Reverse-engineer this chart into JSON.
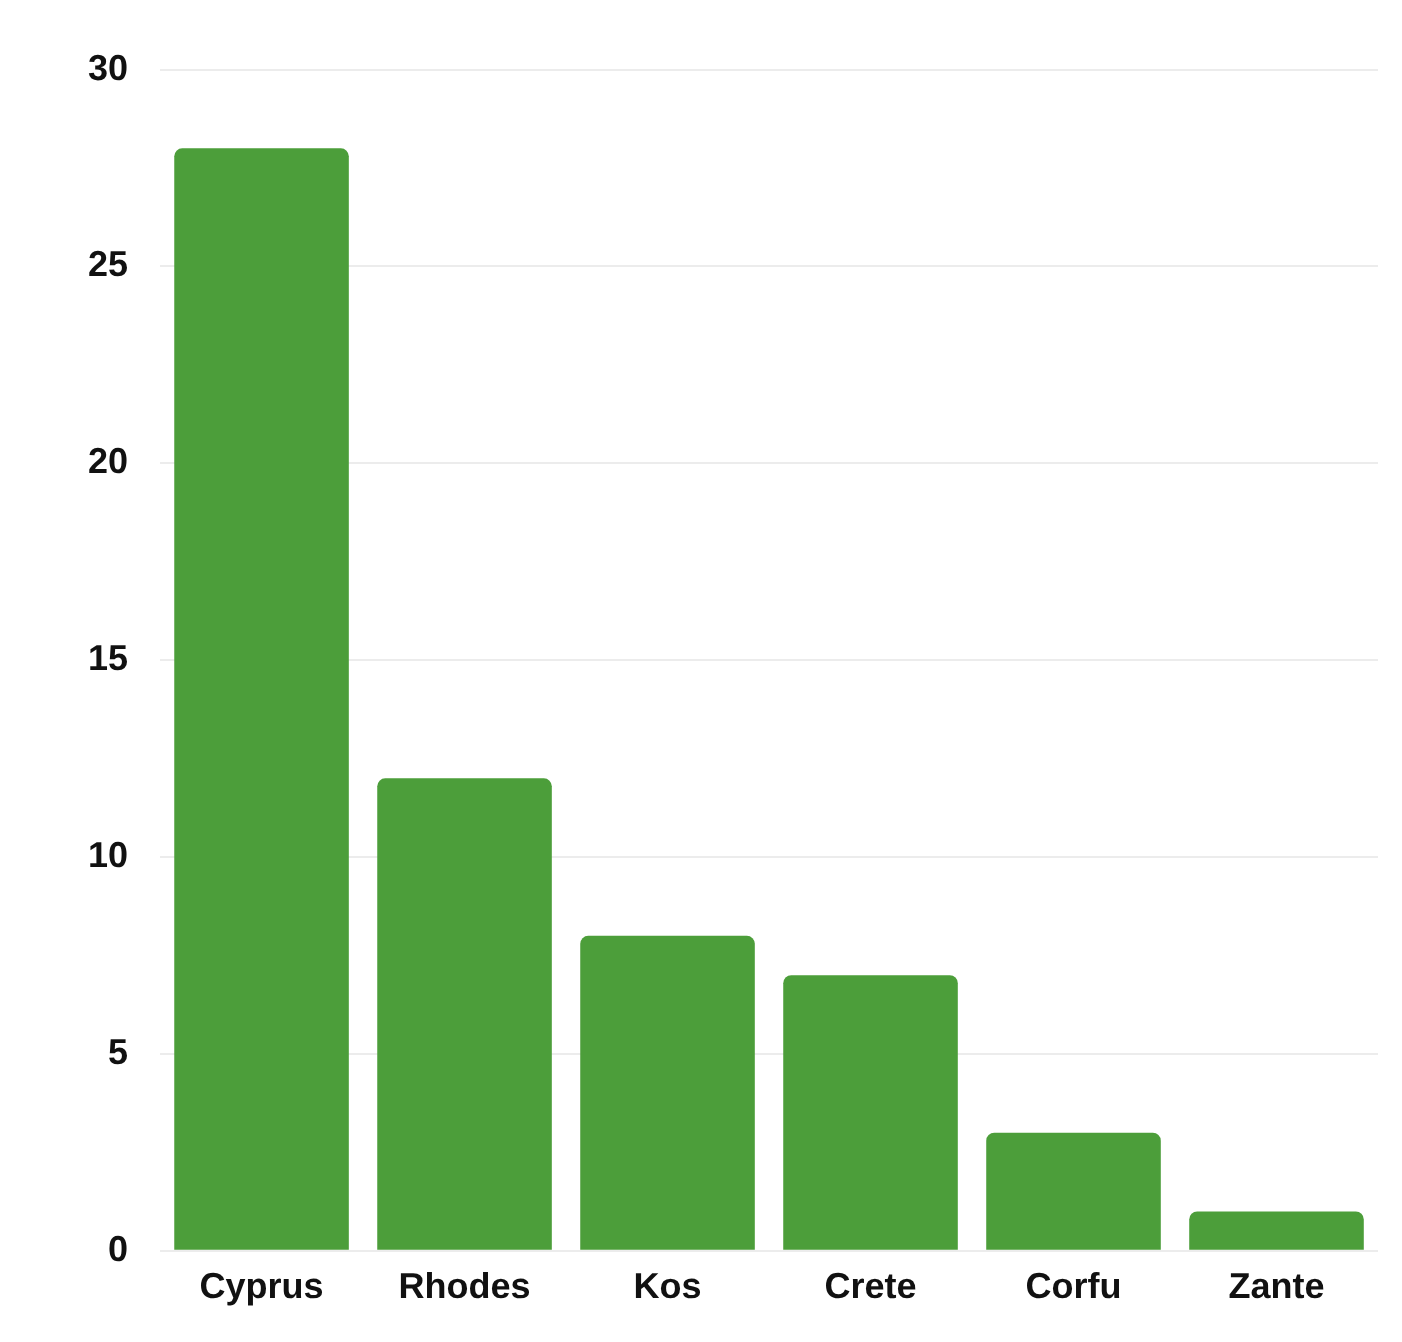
{
  "chart_data": {
    "type": "bar",
    "categories": [
      "Cyprus",
      "Rhodes",
      "Kos",
      "Crete",
      "Corfu",
      "Zante"
    ],
    "values": [
      28,
      12,
      8,
      7,
      3,
      1
    ],
    "color": "#4c9e3a",
    "ylim": [
      0,
      30
    ],
    "yticks": [
      0,
      5,
      10,
      15,
      20,
      25,
      30
    ],
    "grid": "y",
    "legend": false
  }
}
